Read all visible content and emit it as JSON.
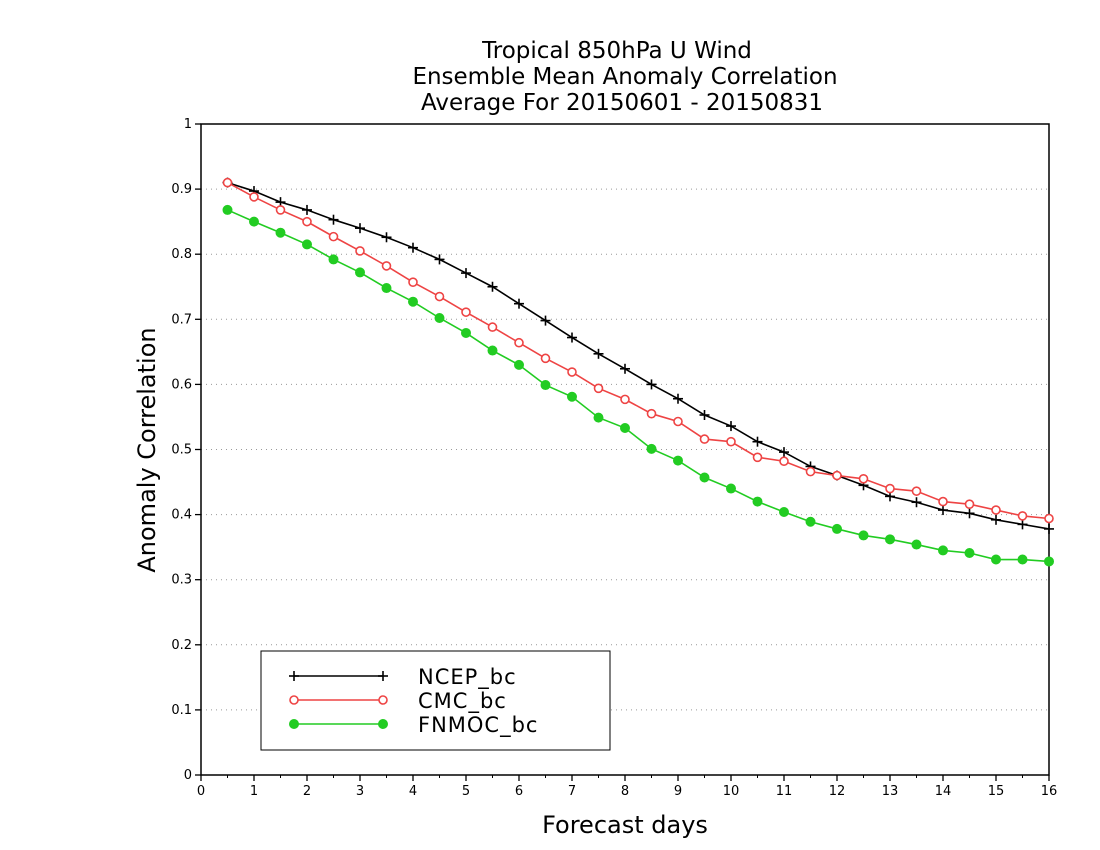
{
  "chart_data": {
    "type": "line",
    "title": [
      "Tropical 850hPa U Wind",
      "Ensemble Mean Anomaly Correlation",
      "Average For 20150601 - 20150831"
    ],
    "xlabel": "Forecast days",
    "ylabel": "Anomaly Correlation",
    "xlim": [
      0,
      16
    ],
    "ylim": [
      0,
      1
    ],
    "xticks": [
      "0",
      "1",
      "2",
      "3",
      "4",
      "5",
      "6",
      "7",
      "8",
      "9",
      "10",
      "11",
      "12",
      "13",
      "14",
      "15",
      "16"
    ],
    "yticks": [
      "0",
      "0.1",
      "0.2",
      "0.3",
      "0.4",
      "0.5",
      "0.6",
      "0.7",
      "0.8",
      "0.9",
      "1"
    ],
    "grid": "horizontal dotted",
    "legend_position": "bottom-left",
    "x": [
      0.5,
      1,
      1.5,
      2,
      2.5,
      3,
      3.5,
      4,
      4.5,
      5,
      5.5,
      6,
      6.5,
      7,
      7.5,
      8,
      8.5,
      9,
      9.5,
      10,
      10.5,
      11,
      11.5,
      12,
      12.5,
      13,
      13.5,
      14,
      14.5,
      15,
      15.5,
      16
    ],
    "series": [
      {
        "name": "NCEP_bc",
        "color": "#000000",
        "marker": "plus",
        "values": [
          0.91,
          0.897,
          0.88,
          0.868,
          0.853,
          0.84,
          0.826,
          0.81,
          0.792,
          0.771,
          0.75,
          0.724,
          0.698,
          0.672,
          0.647,
          0.624,
          0.6,
          0.578,
          0.553,
          0.536,
          0.512,
          0.496,
          0.474,
          0.46,
          0.445,
          0.428,
          0.419,
          0.407,
          0.402,
          0.392,
          0.385,
          0.378
        ]
      },
      {
        "name": "CMC_bc",
        "color": "#ee4444",
        "marker": "open-circle",
        "values": [
          0.91,
          0.888,
          0.868,
          0.85,
          0.827,
          0.805,
          0.782,
          0.757,
          0.735,
          0.711,
          0.688,
          0.664,
          0.64,
          0.619,
          0.594,
          0.577,
          0.555,
          0.543,
          0.516,
          0.512,
          0.488,
          0.482,
          0.466,
          0.46,
          0.455,
          0.44,
          0.436,
          0.42,
          0.416,
          0.407,
          0.398,
          0.394
        ]
      },
      {
        "name": "FNMOC_bc",
        "color": "#22cc22",
        "marker": "filled-circle",
        "values": [
          0.868,
          0.85,
          0.833,
          0.815,
          0.792,
          0.772,
          0.748,
          0.727,
          0.702,
          0.679,
          0.652,
          0.63,
          0.599,
          0.581,
          0.549,
          0.533,
          0.501,
          0.483,
          0.457,
          0.44,
          0.42,
          0.404,
          0.389,
          0.378,
          0.368,
          0.362,
          0.354,
          0.345,
          0.341,
          0.331,
          0.331,
          0.328
        ]
      }
    ]
  }
}
